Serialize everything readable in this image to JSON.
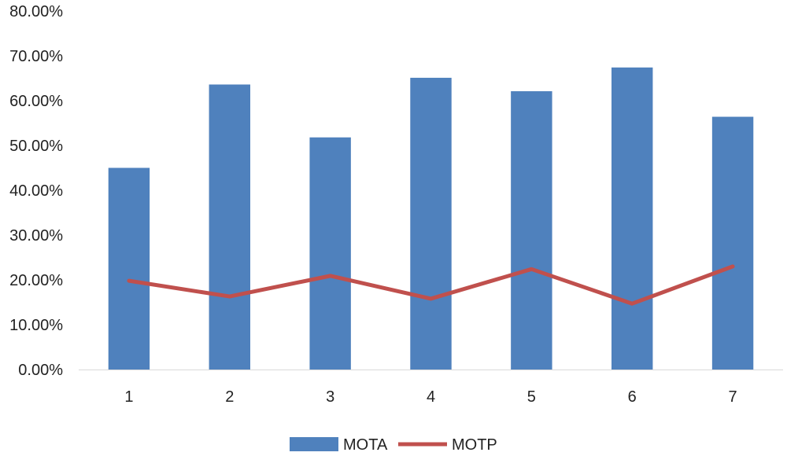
{
  "chart_data": {
    "type": "bar",
    "categories": [
      "1",
      "2",
      "3",
      "4",
      "5",
      "6",
      "7"
    ],
    "series": [
      {
        "name": "MOTA",
        "type": "bar",
        "color": "#4F81BD",
        "values": [
          45.0,
          63.6,
          51.8,
          65.1,
          62.1,
          67.4,
          56.4
        ]
      },
      {
        "name": "MOTP",
        "type": "line",
        "color": "#C0504D",
        "values": [
          19.8,
          16.3,
          20.9,
          15.8,
          22.4,
          14.7,
          23.0
        ]
      }
    ],
    "y_ticks": [
      "0.00%",
      "10.00%",
      "20.00%",
      "30.00%",
      "40.00%",
      "50.00%",
      "60.00%",
      "70.00%",
      "80.00%"
    ],
    "ylim": [
      0,
      80
    ],
    "y_unit": "%",
    "grid": false,
    "legend_position": "bottom"
  }
}
